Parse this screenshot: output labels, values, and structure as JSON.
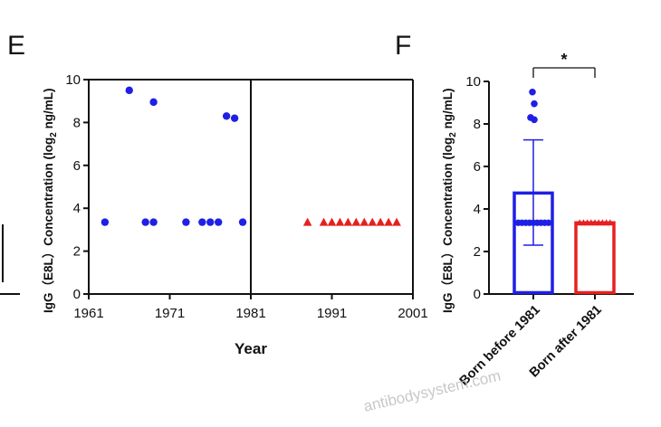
{
  "panels": {
    "e_letter": "E",
    "f_letter": "F"
  },
  "watermark": "antibodysystem.com",
  "colors": {
    "before": "#1f1fe6",
    "after": "#e62020",
    "axis": "#111111"
  },
  "chart_data": [
    {
      "type": "scatter",
      "panel": "E",
      "xlabel": "Year",
      "ylabel": "IgG（E8L）Concentration (log",
      "ylabel_sub": "2",
      "ylabel_tail": " ng/mL)",
      "xlim": [
        1961,
        2001
      ],
      "ylim": [
        0,
        10
      ],
      "xticks": [
        1961,
        1971,
        1981,
        1991,
        2001
      ],
      "yticks": [
        0,
        2,
        4,
        6,
        8,
        10
      ],
      "xtick_labels": [
        "1961",
        "1971",
        "1981",
        "1991",
        "2001"
      ],
      "ytick_labels": [
        "0",
        "2",
        "4",
        "6",
        "8",
        "10"
      ],
      "divider_x": 1981,
      "series": [
        {
          "marker": "circle",
          "color": "#1f1fe6",
          "points": [
            [
              1963,
              3.35
            ],
            [
              1966,
              9.5
            ],
            [
              1968,
              3.35
            ],
            [
              1969,
              3.35
            ],
            [
              1969,
              8.95
            ],
            [
              1973,
              3.35
            ],
            [
              1975,
              3.35
            ],
            [
              1976,
              3.35
            ],
            [
              1977,
              3.35
            ],
            [
              1978,
              8.3
            ],
            [
              1979,
              8.2
            ],
            [
              1980,
              3.35
            ]
          ]
        },
        {
          "marker": "triangle",
          "color": "#e62020",
          "points": [
            [
              1988,
              3.35
            ],
            [
              1990,
              3.35
            ],
            [
              1991,
              3.35
            ],
            [
              1992,
              3.35
            ],
            [
              1993,
              3.35
            ],
            [
              1994,
              3.35
            ],
            [
              1995,
              3.35
            ],
            [
              1996,
              3.35
            ],
            [
              1997,
              3.35
            ],
            [
              1998,
              3.35
            ],
            [
              1999,
              3.35
            ]
          ]
        }
      ]
    },
    {
      "type": "bar",
      "panel": "F",
      "ylabel": "IgG（E8L）Concentration (log",
      "ylabel_sub": "2",
      "ylabel_tail": " ng/mL)",
      "ylim": [
        0,
        10
      ],
      "yticks": [
        0,
        2,
        4,
        6,
        8,
        10
      ],
      "ytick_labels": [
        "0",
        "2",
        "4",
        "6",
        "8",
        "10"
      ],
      "categories": [
        "Born before 1981",
        "Born after 1981"
      ],
      "values": [
        4.75,
        3.35
      ],
      "error_upper": [
        7.25,
        3.35
      ],
      "error_lower": [
        2.3,
        3.35
      ],
      "bar_colors": [
        "#1f1fe6",
        "#e62020"
      ],
      "outliers": [
        [
          9.5,
          8.95,
          8.3,
          8.2
        ],
        []
      ],
      "significance": {
        "label": "*",
        "between": [
          0,
          1
        ]
      }
    }
  ]
}
